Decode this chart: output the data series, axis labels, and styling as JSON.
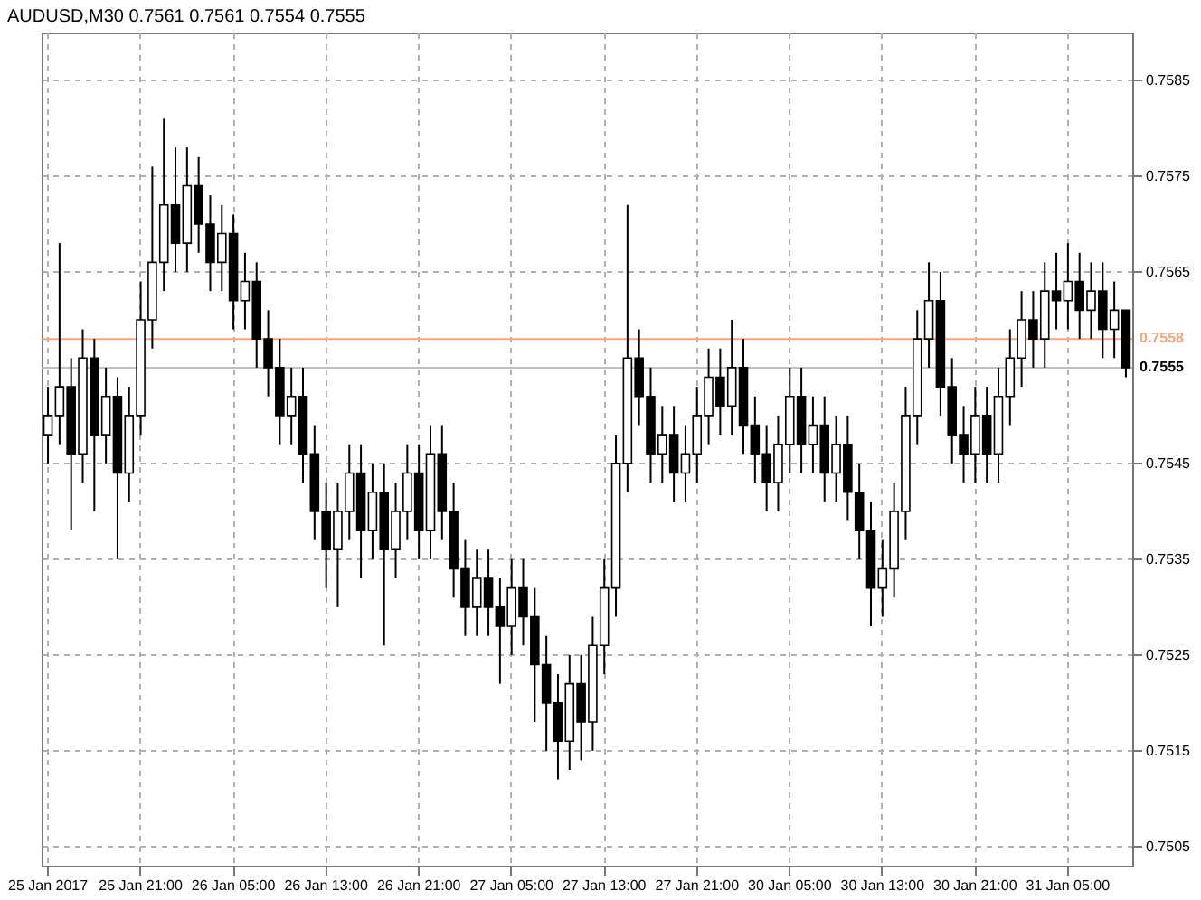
{
  "chart_data": {
    "type": "candlestick",
    "title": "AUDUSD,M30 0.7561 0.7561 0.7554 0.7555",
    "categories": [
      "25 Jan 2017",
      null,
      null,
      null,
      null,
      null,
      null,
      null,
      "25 Jan 21:00",
      null,
      null,
      null,
      null,
      null,
      null,
      null,
      "26 Jan 05:00",
      null,
      null,
      null,
      null,
      null,
      null,
      null,
      "26 Jan 13:00",
      null,
      null,
      null,
      null,
      null,
      null,
      null,
      "26 Jan 21:00",
      null,
      null,
      null,
      null,
      null,
      null,
      null,
      "27 Jan 05:00",
      null,
      null,
      null,
      null,
      null,
      null,
      null,
      "27 Jan 13:00",
      null,
      null,
      null,
      null,
      null,
      null,
      null,
      "27 Jan 21:00",
      null,
      null,
      null,
      null,
      null,
      null,
      null,
      "30 Jan 05:00",
      null,
      null,
      null,
      null,
      null,
      null,
      null,
      "30 Jan 13:00",
      null,
      null,
      null,
      null,
      null,
      null,
      null,
      "30 Jan 21:00",
      null,
      null,
      null,
      null,
      null,
      null,
      null,
      "31 Jan 05:00",
      null,
      null,
      null,
      null,
      null
    ],
    "ohlc": [
      [
        0.7548,
        0.7553,
        0.7545,
        0.755
      ],
      [
        0.755,
        0.7568,
        0.7547,
        0.7553
      ],
      [
        0.7553,
        0.7556,
        0.7538,
        0.7546
      ],
      [
        0.7546,
        0.7559,
        0.7543,
        0.7556
      ],
      [
        0.7556,
        0.7558,
        0.754,
        0.7548
      ],
      [
        0.7548,
        0.7555,
        0.7545,
        0.7552
      ],
      [
        0.7552,
        0.7554,
        0.7535,
        0.7544
      ],
      [
        0.7544,
        0.7553,
        0.7541,
        0.755
      ],
      [
        0.755,
        0.7564,
        0.7548,
        0.756
      ],
      [
        0.756,
        0.7576,
        0.7557,
        0.7566
      ],
      [
        0.7566,
        0.7581,
        0.7563,
        0.7572
      ],
      [
        0.7572,
        0.7578,
        0.7565,
        0.7568
      ],
      [
        0.7568,
        0.7578,
        0.7565,
        0.7574
      ],
      [
        0.7574,
        0.7577,
        0.7567,
        0.757
      ],
      [
        0.757,
        0.7573,
        0.7563,
        0.7566
      ],
      [
        0.7566,
        0.7572,
        0.7563,
        0.7569
      ],
      [
        0.7569,
        0.7571,
        0.7559,
        0.7562
      ],
      [
        0.7562,
        0.7567,
        0.7559,
        0.7564
      ],
      [
        0.7564,
        0.7566,
        0.7555,
        0.7558
      ],
      [
        0.7558,
        0.7561,
        0.7552,
        0.7555
      ],
      [
        0.7555,
        0.7558,
        0.7547,
        0.755
      ],
      [
        0.755,
        0.7555,
        0.7547,
        0.7552
      ],
      [
        0.7552,
        0.7555,
        0.7543,
        0.7546
      ],
      [
        0.7546,
        0.7549,
        0.7537,
        0.754
      ],
      [
        0.754,
        0.7543,
        0.7532,
        0.7536
      ],
      [
        0.7536,
        0.7543,
        0.753,
        0.754
      ],
      [
        0.754,
        0.7547,
        0.7537,
        0.7544
      ],
      [
        0.7544,
        0.7547,
        0.7533,
        0.7538
      ],
      [
        0.7538,
        0.7545,
        0.7535,
        0.7542
      ],
      [
        0.7542,
        0.7545,
        0.7526,
        0.7536
      ],
      [
        0.7536,
        0.7543,
        0.7533,
        0.754
      ],
      [
        0.754,
        0.7547,
        0.7537,
        0.7544
      ],
      [
        0.7544,
        0.7547,
        0.7535,
        0.7538
      ],
      [
        0.7538,
        0.7549,
        0.7535,
        0.7546
      ],
      [
        0.7546,
        0.7549,
        0.7537,
        0.754
      ],
      [
        0.754,
        0.7543,
        0.7531,
        0.7534
      ],
      [
        0.7534,
        0.7537,
        0.7527,
        0.753
      ],
      [
        0.753,
        0.7536,
        0.7527,
        0.7533
      ],
      [
        0.7533,
        0.7536,
        0.7527,
        0.753
      ],
      [
        0.753,
        0.7533,
        0.7522,
        0.7528
      ],
      [
        0.7528,
        0.7535,
        0.7525,
        0.7532
      ],
      [
        0.7532,
        0.7535,
        0.7526,
        0.7529
      ],
      [
        0.7529,
        0.7532,
        0.7518,
        0.7524
      ],
      [
        0.7524,
        0.7527,
        0.7515,
        0.752
      ],
      [
        0.752,
        0.7523,
        0.7512,
        0.7516
      ],
      [
        0.7516,
        0.7525,
        0.7513,
        0.7522
      ],
      [
        0.7522,
        0.7525,
        0.7514,
        0.7518
      ],
      [
        0.7518,
        0.7529,
        0.7515,
        0.7526
      ],
      [
        0.7526,
        0.7535,
        0.7523,
        0.7532
      ],
      [
        0.7532,
        0.7548,
        0.7529,
        0.7545
      ],
      [
        0.7545,
        0.7572,
        0.7542,
        0.7556
      ],
      [
        0.7556,
        0.7559,
        0.7549,
        0.7552
      ],
      [
        0.7552,
        0.7555,
        0.7543,
        0.7546
      ],
      [
        0.7546,
        0.7551,
        0.7543,
        0.7548
      ],
      [
        0.7548,
        0.7551,
        0.7541,
        0.7544
      ],
      [
        0.7544,
        0.7549,
        0.7541,
        0.7546
      ],
      [
        0.7546,
        0.7553,
        0.7543,
        0.755
      ],
      [
        0.755,
        0.7557,
        0.7547,
        0.7554
      ],
      [
        0.7554,
        0.7557,
        0.7548,
        0.7551
      ],
      [
        0.7551,
        0.756,
        0.7548,
        0.7555
      ],
      [
        0.7555,
        0.7558,
        0.7546,
        0.7549
      ],
      [
        0.7549,
        0.7552,
        0.7543,
        0.7546
      ],
      [
        0.7546,
        0.7549,
        0.754,
        0.7543
      ],
      [
        0.7543,
        0.755,
        0.754,
        0.7547
      ],
      [
        0.7547,
        0.7555,
        0.7544,
        0.7552
      ],
      [
        0.7552,
        0.7555,
        0.7544,
        0.7547
      ],
      [
        0.7547,
        0.7552,
        0.7544,
        0.7549
      ],
      [
        0.7549,
        0.7552,
        0.7541,
        0.7544
      ],
      [
        0.7544,
        0.755,
        0.7541,
        0.7547
      ],
      [
        0.7547,
        0.755,
        0.7539,
        0.7542
      ],
      [
        0.7542,
        0.7545,
        0.7535,
        0.7538
      ],
      [
        0.7538,
        0.7541,
        0.7528,
        0.7532
      ],
      [
        0.7532,
        0.7537,
        0.7529,
        0.7534
      ],
      [
        0.7534,
        0.7543,
        0.7531,
        0.754
      ],
      [
        0.754,
        0.7553,
        0.7537,
        0.755
      ],
      [
        0.755,
        0.7561,
        0.7547,
        0.7558
      ],
      [
        0.7558,
        0.7566,
        0.7555,
        0.7562
      ],
      [
        0.7562,
        0.7565,
        0.755,
        0.7553
      ],
      [
        0.7553,
        0.7556,
        0.7545,
        0.7548
      ],
      [
        0.7548,
        0.7551,
        0.7543,
        0.7546
      ],
      [
        0.7546,
        0.7553,
        0.7543,
        0.755
      ],
      [
        0.755,
        0.7553,
        0.7543,
        0.7546
      ],
      [
        0.7546,
        0.7555,
        0.7543,
        0.7552
      ],
      [
        0.7552,
        0.7559,
        0.7549,
        0.7556
      ],
      [
        0.7556,
        0.7563,
        0.7553,
        0.756
      ],
      [
        0.756,
        0.7563,
        0.7555,
        0.7558
      ],
      [
        0.7558,
        0.7566,
        0.7555,
        0.7563
      ],
      [
        0.7563,
        0.7567,
        0.7559,
        0.7562
      ],
      [
        0.7562,
        0.7568,
        0.7559,
        0.7564
      ],
      [
        0.7564,
        0.7567,
        0.7558,
        0.7561
      ],
      [
        0.7561,
        0.7566,
        0.7558,
        0.7563
      ],
      [
        0.7563,
        0.7566,
        0.7556,
        0.7559
      ],
      [
        0.7559,
        0.7564,
        0.7556,
        0.7561
      ],
      [
        0.7561,
        0.7561,
        0.7554,
        0.7555
      ]
    ],
    "ylim": [
      0.7503,
      0.759
    ],
    "yticks": [
      0.7505,
      0.7515,
      0.7525,
      0.7535,
      0.7545,
      0.7565,
      0.7575,
      0.7585
    ],
    "ref_lines": [
      {
        "axis": "y",
        "value": 0.7558,
        "label": "0.7558",
        "color": "#f4a582"
      },
      {
        "axis": "y",
        "value": 0.7555,
        "label": "0.7555",
        "color": "#c0c0c0"
      }
    ],
    "grid": true
  }
}
